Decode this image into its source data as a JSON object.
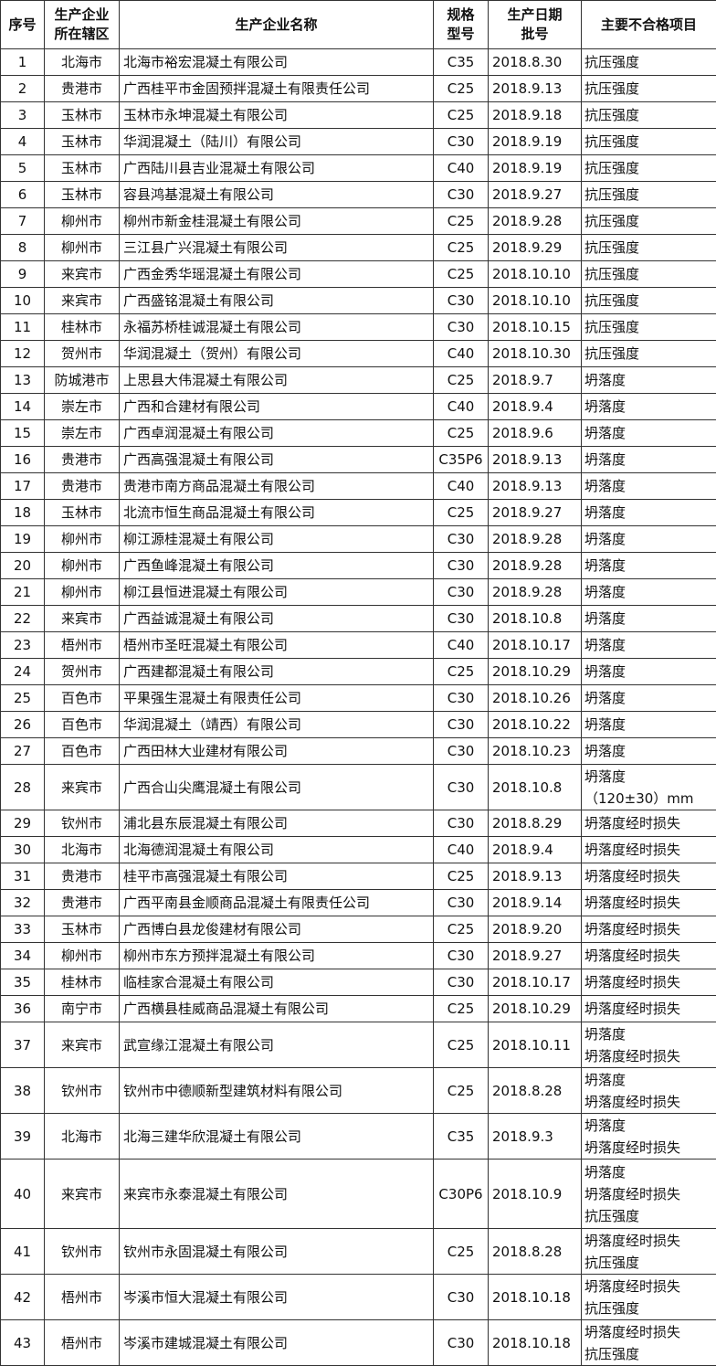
{
  "headers": [
    "序号",
    [
      "生产企业",
      "所在辖区"
    ],
    "生产企业名称",
    [
      "规格",
      "型号"
    ],
    [
      "生产日期",
      "批号"
    ],
    "主要不合格项目"
  ],
  "rows": [
    [
      "1",
      "北海市",
      "北海市裕宏混凝土有限公司",
      "C35",
      "2018.8.30",
      [
        "抗压强度"
      ]
    ],
    [
      "2",
      "贵港市",
      "广西桂平市金固预拌混凝土有限责任公司",
      "C25",
      "2018.9.13",
      [
        "抗压强度"
      ]
    ],
    [
      "3",
      "玉林市",
      "玉林市永坤混凝土有限公司",
      "C25",
      "2018.9.18",
      [
        "抗压强度"
      ]
    ],
    [
      "4",
      "玉林市",
      "华润混凝土（陆川）有限公司",
      "C30",
      "2018.9.19",
      [
        "抗压强度"
      ]
    ],
    [
      "5",
      "玉林市",
      "广西陆川县吉业混凝土有限公司",
      "C40",
      "2018.9.19",
      [
        "抗压强度"
      ]
    ],
    [
      "6",
      "玉林市",
      "容县鸿基混凝土有限公司",
      "C30",
      "2018.9.27",
      [
        "抗压强度"
      ]
    ],
    [
      "7",
      "柳州市",
      "柳州市新金桂混凝土有限公司",
      "C25",
      "2018.9.28",
      [
        "抗压强度"
      ]
    ],
    [
      "8",
      "柳州市",
      "三江县广兴混凝土有限公司",
      "C25",
      "2018.9.29",
      [
        "抗压强度"
      ]
    ],
    [
      "9",
      "来宾市",
      "广西金秀华瑶混凝土有限公司",
      "C25",
      "2018.10.10",
      [
        "抗压强度"
      ]
    ],
    [
      "10",
      "来宾市",
      "广西盛铭混凝土有限公司",
      "C30",
      "2018.10.10",
      [
        "抗压强度"
      ]
    ],
    [
      "11",
      "桂林市",
      "永福苏桥桂诚混凝土有限公司",
      "C30",
      "2018.10.15",
      [
        "抗压强度"
      ]
    ],
    [
      "12",
      "贺州市",
      "华润混凝土（贺州）有限公司",
      "C40",
      "2018.10.30",
      [
        "抗压强度"
      ]
    ],
    [
      "13",
      "防城港市",
      "上思县大伟混凝土有限公司",
      "C25",
      "2018.9.7",
      [
        "坍落度"
      ]
    ],
    [
      "14",
      "崇左市",
      "广西和合建材有限公司",
      "C40",
      "2018.9.4",
      [
        "坍落度"
      ]
    ],
    [
      "15",
      "崇左市",
      "广西卓润混凝土有限公司",
      "C25",
      "2018.9.6",
      [
        "坍落度"
      ]
    ],
    [
      "16",
      "贵港市",
      "广西高强混凝土有限公司",
      "C35P6",
      "2018.9.13",
      [
        "坍落度"
      ]
    ],
    [
      "17",
      "贵港市",
      "贵港市南方商品混凝土有限公司",
      "C40",
      "2018.9.13",
      [
        "坍落度"
      ]
    ],
    [
      "18",
      "玉林市",
      "北流市恒生商品混凝土有限公司",
      "C25",
      "2018.9.27",
      [
        "坍落度"
      ]
    ],
    [
      "19",
      "柳州市",
      "柳江源桂混凝土有限公司",
      "C30",
      "2018.9.28",
      [
        "坍落度"
      ]
    ],
    [
      "20",
      "柳州市",
      "广西鱼峰混凝土有限公司",
      "C30",
      "2018.9.28",
      [
        "坍落度"
      ]
    ],
    [
      "21",
      "柳州市",
      "柳江县恒进混凝土有限公司",
      "C30",
      "2018.9.28",
      [
        "坍落度"
      ]
    ],
    [
      "22",
      "来宾市",
      "广西益诚混凝土有限公司",
      "C30",
      "2018.10.8",
      [
        "坍落度"
      ]
    ],
    [
      "23",
      "梧州市",
      "梧州市圣旺混凝土有限公司",
      "C40",
      "2018.10.17",
      [
        "坍落度"
      ]
    ],
    [
      "24",
      "贺州市",
      "广西建都混凝土有限公司",
      "C25",
      "2018.10.29",
      [
        "坍落度"
      ]
    ],
    [
      "25",
      "百色市",
      "平果强生混凝土有限责任公司",
      "C30",
      "2018.10.26",
      [
        "坍落度"
      ]
    ],
    [
      "26",
      "百色市",
      "华润混凝土（靖西）有限公司",
      "C30",
      "2018.10.22",
      [
        "坍落度"
      ]
    ],
    [
      "27",
      "百色市",
      "广西田林大业建材有限公司",
      "C30",
      "2018.10.23",
      [
        "坍落度"
      ]
    ],
    [
      "28",
      "来宾市",
      "广西合山尖鹰混凝土有限公司",
      "C30",
      "2018.10.8",
      [
        "坍落度",
        "（120±30）mm"
      ]
    ],
    [
      "29",
      "钦州市",
      "浦北县东辰混凝土有限公司",
      "C30",
      "2018.8.29",
      [
        "坍落度经时损失"
      ]
    ],
    [
      "30",
      "北海市",
      "北海德润混凝土有限公司",
      "C40",
      "2018.9.4",
      [
        "坍落度经时损失"
      ]
    ],
    [
      "31",
      "贵港市",
      "桂平市高强混凝土有限公司",
      "C25",
      "2018.9.13",
      [
        "坍落度经时损失"
      ]
    ],
    [
      "32",
      "贵港市",
      "广西平南县金顺商品混凝土有限责任公司",
      "C30",
      "2018.9.14",
      [
        "坍落度经时损失"
      ]
    ],
    [
      "33",
      "玉林市",
      "广西博白县龙俊建材有限公司",
      "C25",
      "2018.9.20",
      [
        "坍落度经时损失"
      ]
    ],
    [
      "34",
      "柳州市",
      "柳州市东方预拌混凝土有限公司",
      "C30",
      "2018.9.27",
      [
        "坍落度经时损失"
      ]
    ],
    [
      "35",
      "桂林市",
      "临桂家合混凝土有限公司",
      "C30",
      "2018.10.17",
      [
        "坍落度经时损失"
      ]
    ],
    [
      "36",
      "南宁市",
      "广西横县桂威商品混凝土有限公司",
      "C25",
      "2018.10.29",
      [
        "坍落度经时损失"
      ]
    ],
    [
      "37",
      "来宾市",
      "武宣缘江混凝土有限公司",
      "C25",
      "2018.10.11",
      [
        "坍落度",
        "坍落度经时损失"
      ]
    ],
    [
      "38",
      "钦州市",
      "钦州市中德顺新型建筑材料有限公司",
      "C25",
      "2018.8.28",
      [
        "坍落度",
        "坍落度经时损失"
      ]
    ],
    [
      "39",
      "北海市",
      "北海三建华欣混凝土有限公司",
      "C35",
      "2018.9.3",
      [
        "坍落度",
        "坍落度经时损失"
      ]
    ],
    [
      "40",
      "来宾市",
      "来宾市永泰混凝土有限公司",
      "C30P6",
      "2018.10.9",
      [
        "坍落度",
        "坍落度经时损失",
        "抗压强度"
      ]
    ],
    [
      "41",
      "钦州市",
      "钦州市永固混凝土有限公司",
      "C25",
      "2018.8.28",
      [
        "坍落度经时损失",
        "抗压强度"
      ]
    ],
    [
      "42",
      "梧州市",
      "岑溪市恒大混凝土有限公司",
      "C30",
      "2018.10.18",
      [
        "坍落度经时损失",
        "抗压强度"
      ]
    ],
    [
      "43",
      "梧州市",
      "岑溪市建城混凝土有限公司",
      "C30",
      "2018.10.18",
      [
        "坍落度经时损失",
        "抗压强度"
      ]
    ]
  ]
}
